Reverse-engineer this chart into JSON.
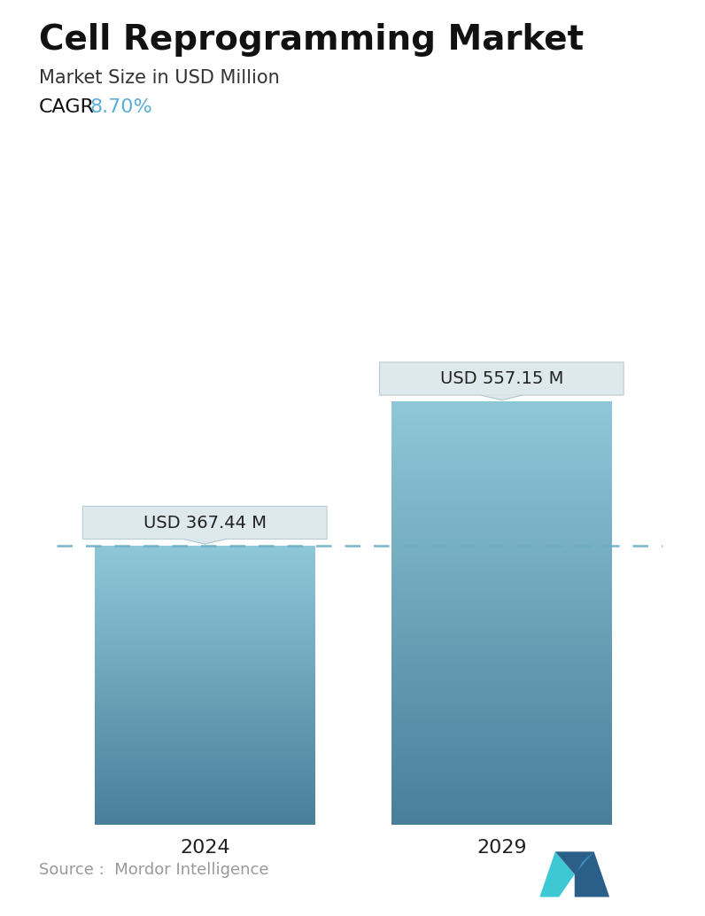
{
  "title": "Cell Reprogramming Market",
  "subtitle": "Market Size in USD Million",
  "cagr_label": "CAGR ",
  "cagr_value": "8.70%",
  "cagr_color": "#5bafd6",
  "categories": [
    "2024",
    "2029"
  ],
  "values": [
    367.44,
    557.15
  ],
  "bar_labels": [
    "USD 367.44 M",
    "USD 557.15 M"
  ],
  "bar_top_color": "#7bbccc",
  "bar_bottom_color": "#4a7f9a",
  "dashed_line_y": 367.44,
  "dashed_line_color": "#6aaec8",
  "source_text": "Source :  Mordor Intelligence",
  "source_color": "#999999",
  "background_color": "#ffffff",
  "title_fontsize": 28,
  "subtitle_fontsize": 15,
  "cagr_fontsize": 16,
  "bar_label_fontsize": 14,
  "tick_fontsize": 16,
  "source_fontsize": 13,
  "ylim": [
    0,
    700
  ],
  "bar_width": 0.52,
  "positions": [
    0.3,
    1.0
  ]
}
